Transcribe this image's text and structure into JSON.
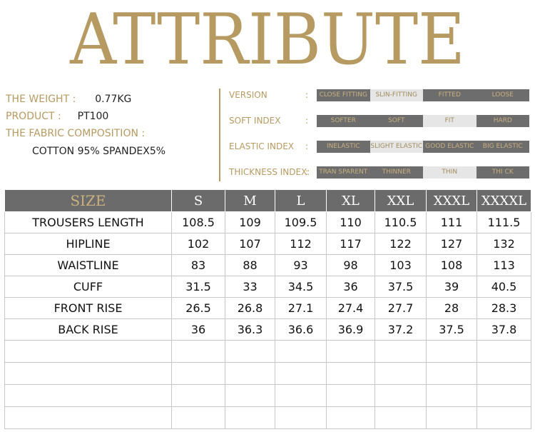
{
  "title": "ATTRIBUTE",
  "info": {
    "weight_label": "THE WEIGHT :",
    "weight_value": "0.77KG",
    "product_label": "PRODUCT :",
    "product_value": "PT100",
    "fabric_label": "THE FABRIC COMPOSITION :",
    "fabric_value": "COTTON 95% SPANDEX5%"
  },
  "attributes": [
    {
      "label": "VERSION",
      "options": [
        "CLOSE FITTING",
        "SLIN-FITTING",
        "FITTED",
        "LOOSE"
      ],
      "selected": 1
    },
    {
      "label": "SOFT INDEX",
      "options": [
        "SOFTER",
        "SOFT",
        "FIT",
        "HARD"
      ],
      "selected": 2
    },
    {
      "label": "ELASTIC INDEX",
      "options": [
        "INELASTIC",
        "SLIGHT ELASTIC",
        "GOOD ELASTIC",
        "BIG ELASTIC"
      ],
      "selected": 1
    },
    {
      "label": "THICKNESS INDEX:",
      "options": [
        "TRAN SPARENT",
        "THINNER",
        "THIN",
        "THI CK"
      ],
      "selected": 2
    }
  ],
  "colors": {
    "gold": "#b69a61",
    "dark_gray": "#6b6b6b",
    "light_gray": "#e6e6e6"
  },
  "size_table": {
    "header": [
      "SIZE",
      "S",
      "M",
      "L",
      "XL",
      "XXL",
      "XXXL",
      "XXXXL"
    ],
    "rows": [
      [
        "TROUSERS  LENGTH",
        "108.5",
        "109",
        "109.5",
        "110",
        "110.5",
        "111",
        "111.5"
      ],
      [
        "HIPLINE",
        "102",
        "107",
        "112",
        "117",
        "122",
        "127",
        "132"
      ],
      [
        "WAISTLINE",
        "83",
        "88",
        "93",
        "98",
        "103",
        "108",
        "113"
      ],
      [
        "CUFF",
        "31.5",
        "33",
        "34.5",
        "36",
        "37.5",
        "39",
        "40.5"
      ],
      [
        "FRONT RISE",
        "26.5",
        "26.8",
        "27.1",
        "27.4",
        "27.7",
        "28",
        "28.3"
      ],
      [
        "BACK RISE",
        "36",
        "36.3",
        "36.6",
        "36.9",
        "37.2",
        "37.5",
        "37.8"
      ]
    ],
    "empty_rows": 4
  }
}
